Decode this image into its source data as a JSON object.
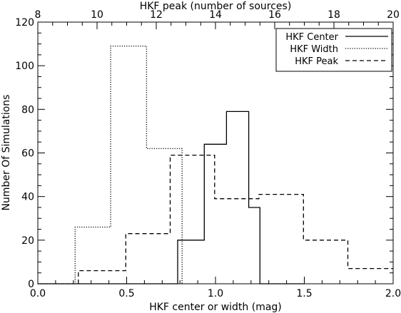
{
  "chart_data": {
    "type": "line",
    "style": "step-histogram",
    "xlabel": "HKF center or width (mag)",
    "x2label": "HKF peak (number of sources)",
    "ylabel": "Number Of Simulations",
    "xlim": [
      0.0,
      2.0
    ],
    "x2lim": [
      8,
      20
    ],
    "ylim": [
      0,
      120
    ],
    "xticks": [
      "0.0",
      "0.5",
      "1.0",
      "1.5",
      "2.0"
    ],
    "x2ticks": [
      "8",
      "10",
      "12",
      "14",
      "16",
      "18",
      "20"
    ],
    "yticks": [
      "0",
      "20",
      "40",
      "60",
      "80",
      "100",
      "120"
    ],
    "legend": {
      "position": "top-right",
      "entries": [
        {
          "label": "HKF Center",
          "dash": "solid"
        },
        {
          "label": "HKF Width",
          "dash": "dotted"
        },
        {
          "label": "HKF Peak",
          "dash": "dashed"
        }
      ]
    },
    "series": [
      {
        "name": "HKF Center",
        "axis": "bottom",
        "dash": "solid",
        "x": [
          0.0,
          0.787,
          0.787,
          0.937,
          0.937,
          1.062,
          1.062,
          1.187,
          1.187,
          1.25,
          1.25,
          1.4,
          1.4,
          1.5
        ],
        "y": [
          0,
          0,
          20,
          20,
          64,
          64,
          79,
          79,
          35,
          35,
          0,
          0,
          0,
          0
        ]
      },
      {
        "name": "HKF Width",
        "axis": "bottom",
        "dash": "dotted",
        "x": [
          0.0,
          0.21,
          0.21,
          0.41,
          0.41,
          0.612,
          0.612,
          0.812,
          0.812
        ],
        "y": [
          0,
          0,
          26,
          26,
          109,
          109,
          62,
          62,
          0
        ]
      },
      {
        "name": "HKF Peak",
        "axis": "bottom",
        "dash": "dashed",
        "x": [
          0.228,
          0.228,
          0.248,
          0.248,
          0.495,
          0.495,
          0.745,
          0.745,
          0.995,
          0.995,
          1.245,
          1.245,
          1.495,
          1.495,
          1.745,
          1.745,
          2.0
        ],
        "y": [
          0,
          6,
          6,
          6,
          6,
          23,
          23,
          59,
          59,
          39,
          39,
          41,
          41,
          20,
          20,
          7,
          7
        ]
      }
    ]
  }
}
